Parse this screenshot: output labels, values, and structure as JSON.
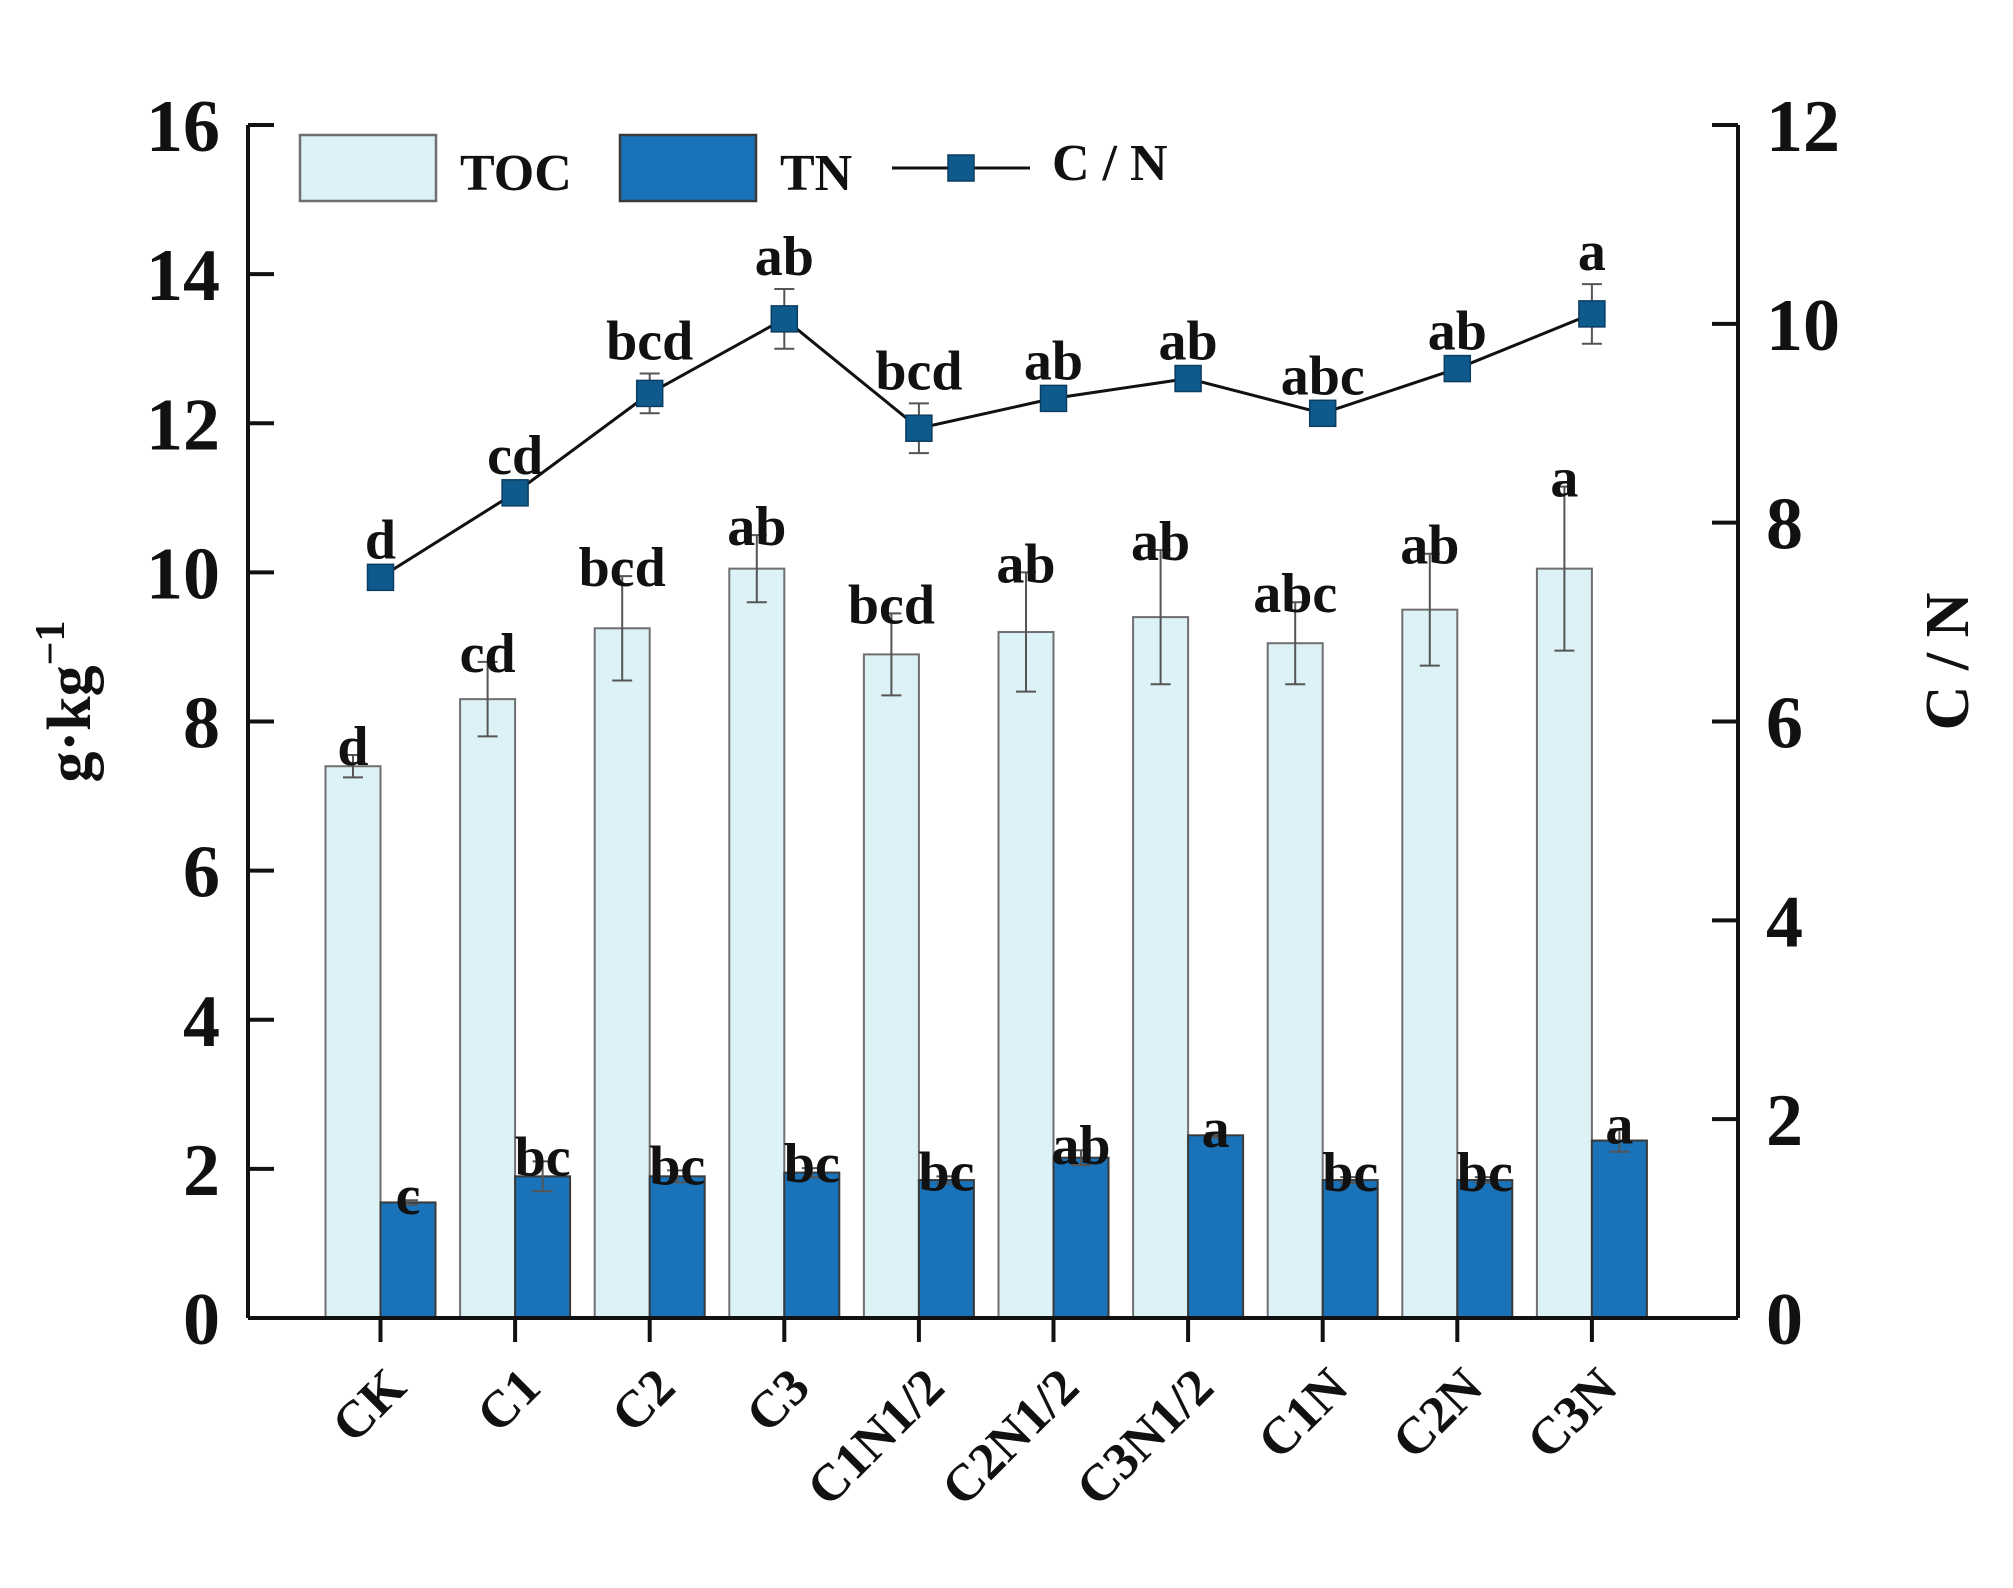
{
  "chart_data": {
    "type": "bar",
    "categories": [
      "CK",
      "C1",
      "C2",
      "C3",
      "C1N1/2",
      "C2N1/2",
      "C3N1/2",
      "C1N",
      "C2N",
      "C3N"
    ],
    "series": [
      {
        "name": "TOC",
        "axis": "left",
        "kind": "bar",
        "color": "#dcf2f7",
        "values": [
          7.4,
          8.3,
          9.25,
          10.05,
          8.9,
          9.2,
          9.4,
          9.05,
          9.5,
          10.05
        ],
        "errors": [
          0.15,
          0.5,
          0.7,
          0.45,
          0.55,
          0.8,
          0.9,
          0.55,
          0.75,
          1.1
        ],
        "significance": [
          "d",
          "cd",
          "bcd",
          "ab",
          "bcd",
          "ab",
          "ab",
          "abc",
          "ab",
          "a"
        ]
      },
      {
        "name": "TN",
        "axis": "left",
        "kind": "bar",
        "color": "#1a72b8",
        "values": [
          1.55,
          1.9,
          1.9,
          1.95,
          1.85,
          2.15,
          2.45,
          1.85,
          1.85,
          2.38
        ],
        "errors": [
          0.03,
          0.2,
          0.08,
          0.06,
          0.05,
          0.1,
          0.03,
          0.04,
          0.04,
          0.15
        ],
        "significance": [
          "c",
          "bc",
          "bc",
          "bc",
          "bc",
          "ab",
          "a",
          "bc",
          "bc",
          "a"
        ]
      },
      {
        "name": "C / N",
        "axis": "right",
        "kind": "line",
        "color": "#0f5a8c",
        "values": [
          7.45,
          8.3,
          9.3,
          10.05,
          8.95,
          9.25,
          9.45,
          9.1,
          9.55,
          10.1
        ],
        "errors": [
          0.05,
          0.05,
          0.2,
          0.3,
          0.25,
          0.05,
          0.05,
          0.05,
          0.05,
          0.3
        ],
        "significance": [
          "d",
          "cd",
          "bcd",
          "ab",
          "bcd",
          "ab",
          "ab",
          "abc",
          "ab",
          "a"
        ]
      }
    ],
    "y_left": {
      "label": "g·kg",
      "label_sup": "−1",
      "ylim": [
        0,
        16
      ],
      "ticks": [
        "0",
        "2",
        "4",
        "6",
        "8",
        "10",
        "12",
        "14",
        "16"
      ]
    },
    "y_right": {
      "label": "C / N",
      "ylim": [
        0,
        12
      ],
      "ticks": [
        "0",
        "2",
        "4",
        "6",
        "8",
        "10",
        "12"
      ]
    },
    "xlabel": "",
    "title": "",
    "legend_position": "top-left",
    "grid": false
  }
}
